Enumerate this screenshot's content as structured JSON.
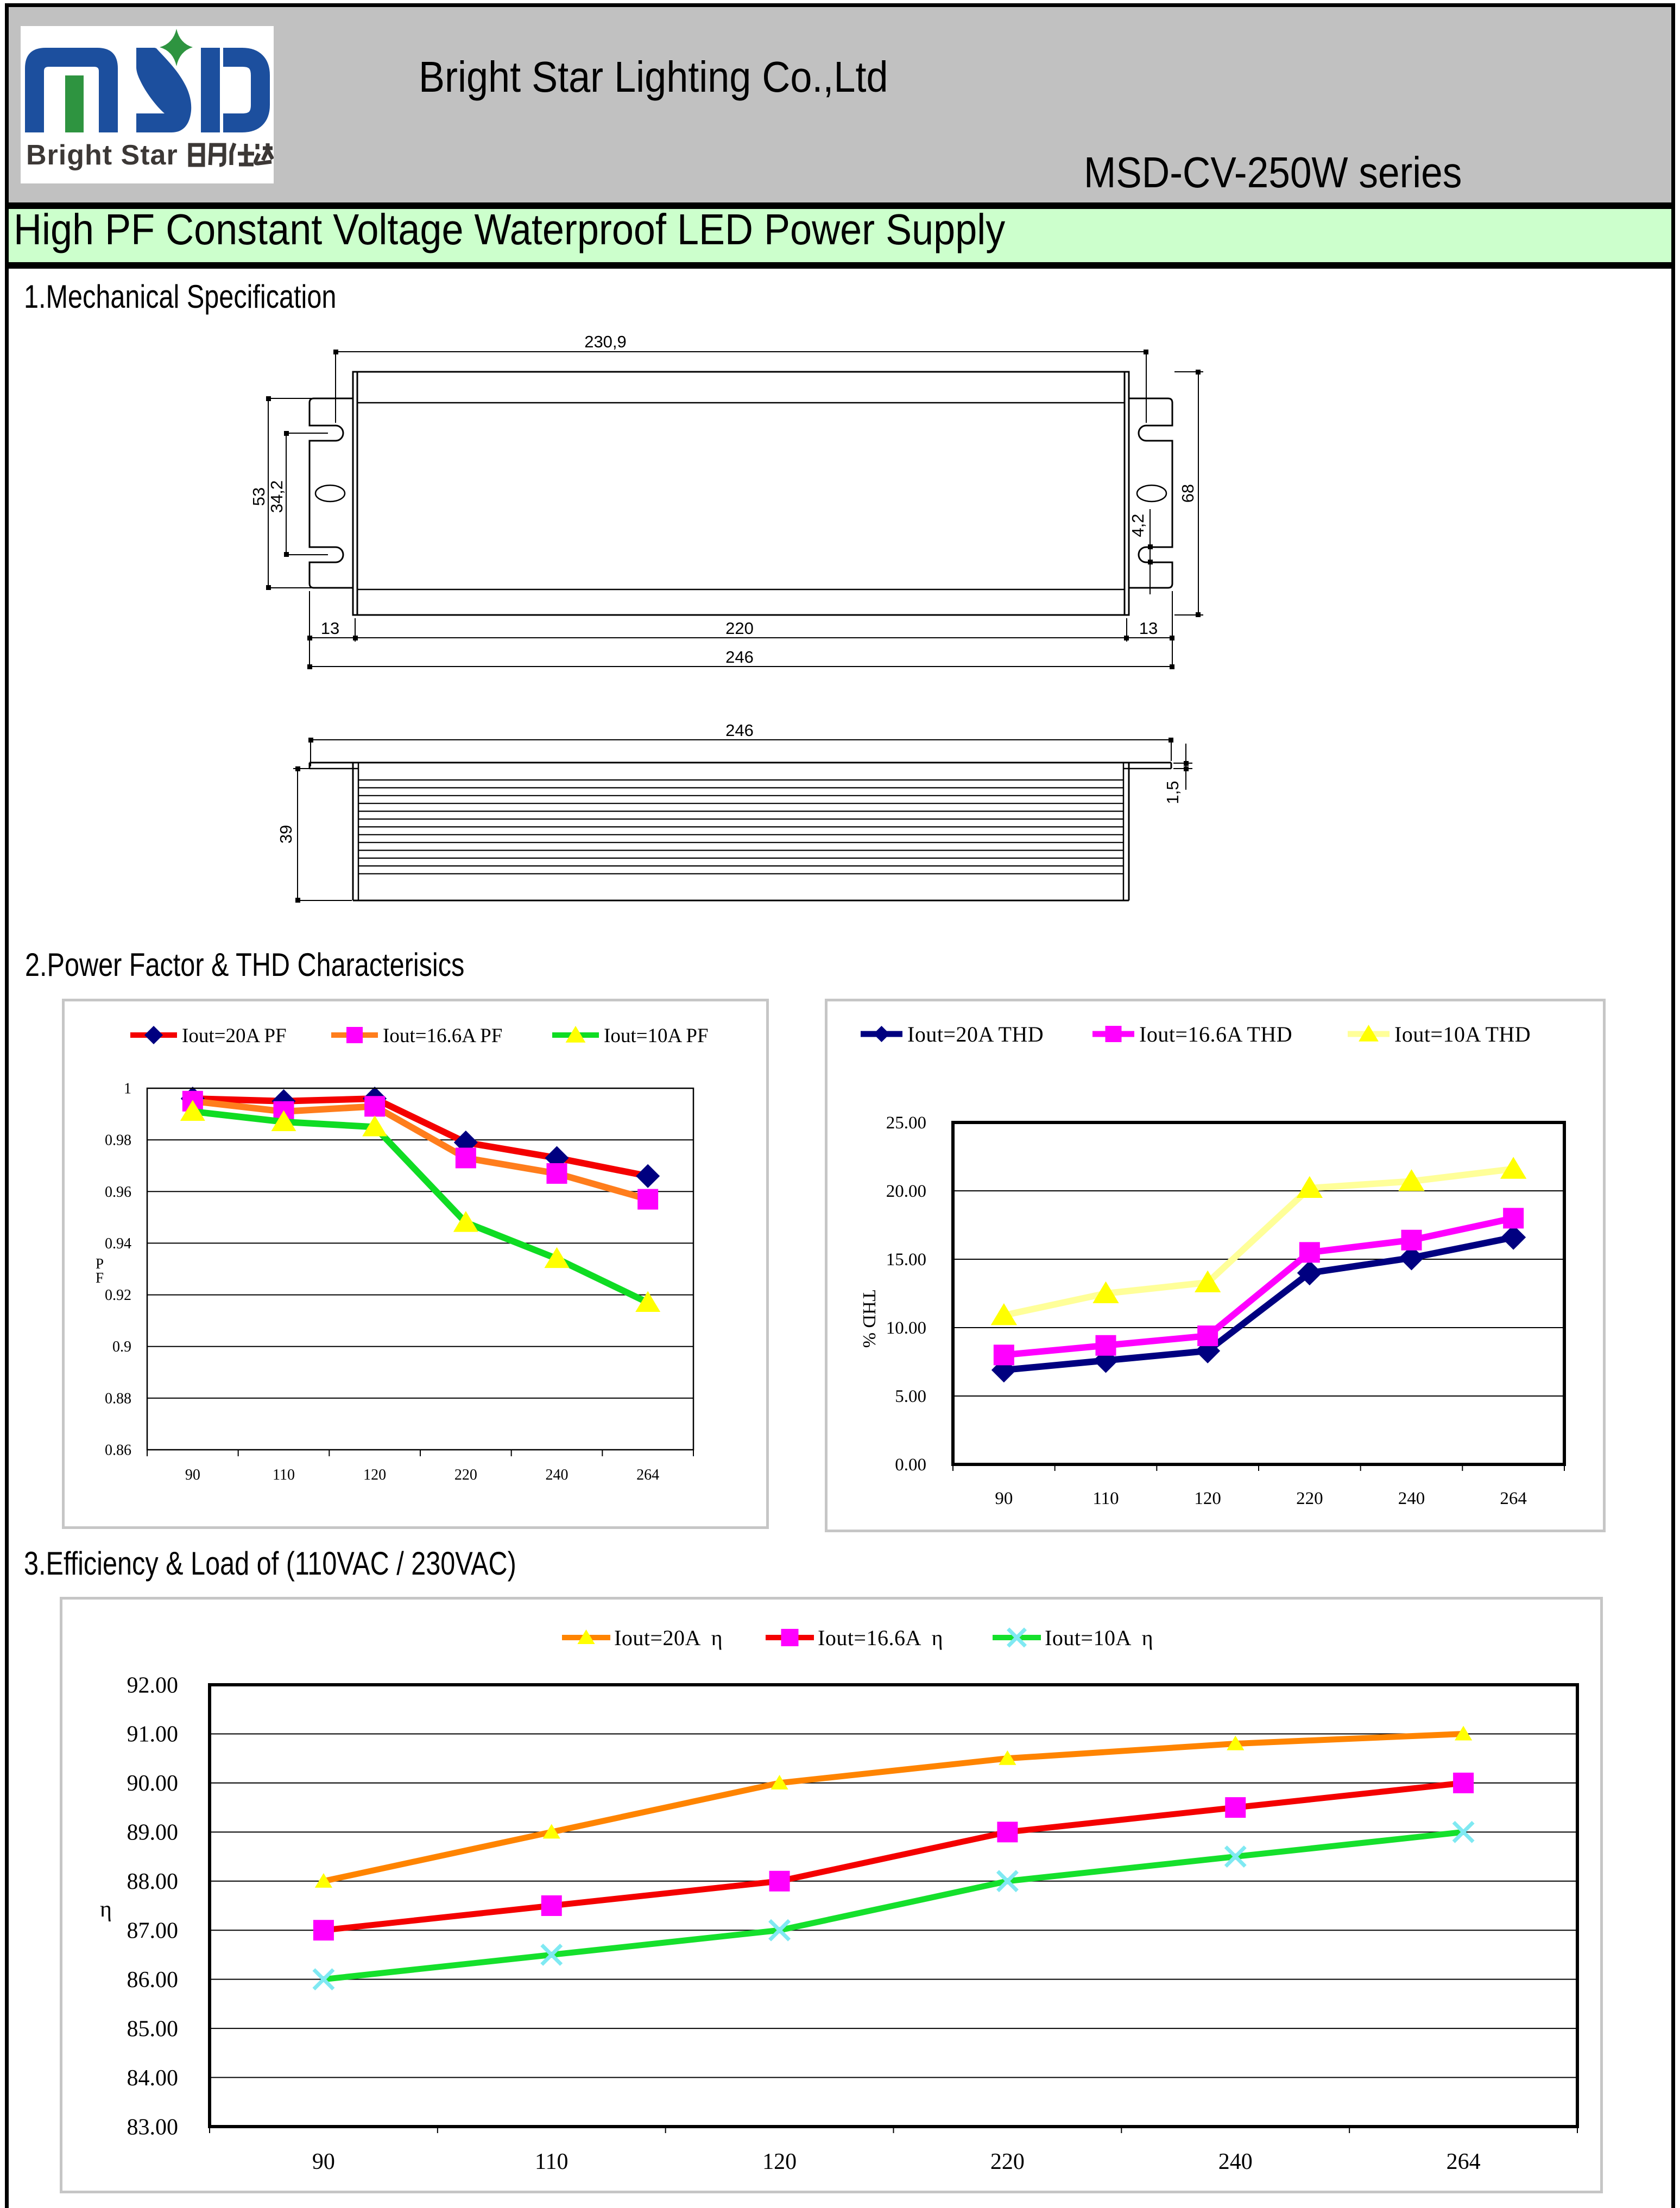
{
  "header": {
    "company": "Bright Star Lighting Co.,Ltd",
    "series": "MSD-CV-250W series",
    "banner_title": "High PF Constant Voltage Waterproof LED Power Supply"
  },
  "logo": {
    "acronym": "MSD",
    "subtext": "Bright Star 明仕达",
    "subtext_latin": "Bright Star",
    "subtext_cjk": "明仕达",
    "colors": {
      "blue": "#1c4f9e",
      "green": "#2e9440",
      "dark": "#3c3836"
    }
  },
  "sections": {
    "mech": {
      "title": "1.Mechanical Specification"
    },
    "pf_thd": {
      "title": "2.Power Factor & THD Characterisics"
    },
    "eff": {
      "title": "3.Efficiency & Load of (110VAC / 230VAC)"
    }
  },
  "mech": {
    "dims": {
      "slot_span_w": "230,9",
      "body_w": "220",
      "total_w": "246",
      "flange_l": "13",
      "flange_r": "13",
      "bracket_h": "53",
      "slot_pitch": "34,2",
      "slot_w": "4,2",
      "body_h": "68",
      "side_total_w": "246",
      "side_h": "39",
      "lip_t": "1,5"
    }
  },
  "chart_data": [
    {
      "id": "pf",
      "type": "line",
      "title": "",
      "categories": [
        "90",
        "110",
        "120",
        "220",
        "240",
        "264"
      ],
      "ylabel": "PF",
      "ylabel_lines": [
        "P",
        "F"
      ],
      "yticks": [
        "1",
        "0.98",
        "0.96",
        "0.94",
        "0.92",
        "0.9",
        "0.88",
        "0.86"
      ],
      "ylim": [
        0.86,
        1.0
      ],
      "ystep": 0.02,
      "grid": true,
      "legend_position": "top",
      "series": [
        {
          "name": "Iout=20A PF",
          "line_color": "#f40000",
          "marker": "diamond",
          "marker_color": "#000080",
          "values": [
            0.996,
            0.995,
            0.996,
            0.979,
            0.973,
            0.966
          ]
        },
        {
          "name": "Iout=16.6A PF",
          "line_color": "#ff7d1c",
          "marker": "square",
          "marker_color": "#ff00ff",
          "values": [
            0.995,
            0.991,
            0.993,
            0.973,
            0.967,
            0.957
          ]
        },
        {
          "name": "Iout=10A PF",
          "line_color": "#0fdc23",
          "marker": "triangle",
          "marker_color": "#ffff00",
          "values": [
            0.991,
            0.987,
            0.985,
            0.948,
            0.934,
            0.917
          ]
        }
      ]
    },
    {
      "id": "thd",
      "type": "line",
      "title": "",
      "categories": [
        "90",
        "110",
        "120",
        "220",
        "240",
        "264"
      ],
      "ylabel": "THD %",
      "yticks": [
        "25.00",
        "20.00",
        "15.00",
        "10.00",
        "5.00",
        "0.00"
      ],
      "ylim": [
        0,
        25
      ],
      "ystep": 5,
      "grid": true,
      "legend_position": "top",
      "series": [
        {
          "name": "Iout=20A THD",
          "line_color": "#000080",
          "marker": "diamond",
          "marker_color": "#000080",
          "values": [
            6.9,
            7.6,
            8.3,
            14.0,
            15.1,
            16.6
          ]
        },
        {
          "name": "Iout=16.6A THD",
          "line_color": "#ff00ff",
          "marker": "square",
          "marker_color": "#ff00ff",
          "values": [
            8.0,
            8.7,
            9.4,
            15.5,
            16.4,
            18.0
          ]
        },
        {
          "name": "Iout=10A THD",
          "line_color": "#ffff99",
          "marker": "triangle",
          "marker_color": "#ffff00",
          "values": [
            10.9,
            12.5,
            13.3,
            20.2,
            20.7,
            21.6
          ]
        }
      ]
    },
    {
      "id": "eff",
      "type": "line",
      "title": "",
      "categories": [
        "90",
        "110",
        "120",
        "220",
        "240",
        "264"
      ],
      "ylabel": "η",
      "yticks": [
        "92.00",
        "91.00",
        "90.00",
        "89.00",
        "88.00",
        "87.00",
        "86.00",
        "85.00",
        "84.00",
        "83.00"
      ],
      "ylim": [
        83,
        92
      ],
      "ystep": 1,
      "grid": true,
      "legend_position": "top",
      "series": [
        {
          "name": "Iout=20A  η",
          "line_color": "#ff8400",
          "marker": "triangle",
          "marker_color": "#ffff00",
          "values": [
            88.0,
            89.0,
            90.0,
            90.5,
            90.8,
            91.0
          ]
        },
        {
          "name": "Iout=16.6A  η",
          "line_color": "#f40000",
          "marker": "square",
          "marker_color": "#ff00ff",
          "values": [
            87.0,
            87.5,
            88.0,
            89.0,
            89.5,
            90.0
          ]
        },
        {
          "name": "Iout=10A  η",
          "line_color": "#15e02c",
          "marker": "xcross",
          "marker_color": "#7fe9f2",
          "values": [
            86.0,
            86.5,
            87.0,
            88.0,
            88.5,
            89.0
          ]
        }
      ]
    }
  ]
}
